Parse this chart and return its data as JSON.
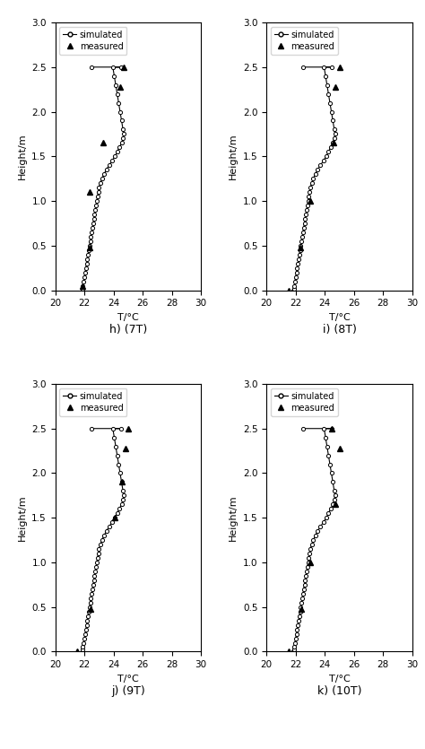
{
  "panel_labels": [
    "h) (7T)",
    "i) (8T)",
    "j) (9T)",
    "k) (10T)"
  ],
  "xlim": [
    20,
    30
  ],
  "xticks": [
    20,
    22,
    24,
    26,
    28,
    30
  ],
  "ylim": [
    0,
    3
  ],
  "yticks": [
    0,
    0.5,
    1.0,
    1.5,
    2.0,
    2.5,
    3.0
  ],
  "xlabel": "T/°C",
  "ylabel": "Height/m",
  "panels": [
    {
      "sim_H": [
        0.0,
        0.02,
        0.05,
        0.1,
        0.15,
        0.2,
        0.25,
        0.3,
        0.35,
        0.4,
        0.45,
        0.5,
        0.55,
        0.6,
        0.65,
        0.7,
        0.75,
        0.8,
        0.85,
        0.9,
        0.95,
        1.0,
        1.05,
        1.1,
        1.15,
        1.2,
        1.25,
        1.3,
        1.35,
        1.4,
        1.45,
        1.5,
        1.55,
        1.6,
        1.65,
        1.7,
        1.75,
        1.8,
        1.9,
        2.0,
        2.1,
        2.2,
        2.3,
        2.4,
        2.5,
        2.5,
        2.5
      ],
      "sim_T": [
        21.85,
        21.87,
        21.9,
        21.95,
        22.0,
        22.05,
        22.1,
        22.15,
        22.2,
        22.25,
        22.3,
        22.35,
        22.4,
        22.45,
        22.5,
        22.55,
        22.6,
        22.65,
        22.7,
        22.75,
        22.8,
        22.85,
        22.9,
        22.95,
        23.0,
        23.1,
        23.2,
        23.35,
        23.5,
        23.7,
        23.9,
        24.1,
        24.25,
        24.4,
        24.55,
        24.65,
        24.7,
        24.65,
        24.55,
        24.45,
        24.35,
        24.25,
        24.15,
        24.05,
        23.95,
        24.5,
        22.5
      ],
      "meas_T": [
        21.85,
        22.35,
        22.35,
        23.3,
        24.45,
        24.7
      ],
      "meas_H": [
        0.05,
        0.48,
        1.1,
        1.65,
        2.28,
        2.5
      ]
    },
    {
      "sim_H": [
        0.0,
        0.02,
        0.05,
        0.1,
        0.15,
        0.2,
        0.25,
        0.3,
        0.35,
        0.4,
        0.45,
        0.5,
        0.55,
        0.6,
        0.65,
        0.7,
        0.75,
        0.8,
        0.85,
        0.9,
        0.95,
        1.0,
        1.05,
        1.1,
        1.15,
        1.2,
        1.25,
        1.3,
        1.35,
        1.4,
        1.45,
        1.5,
        1.55,
        1.6,
        1.65,
        1.7,
        1.75,
        1.8,
        1.9,
        2.0,
        2.1,
        2.2,
        2.3,
        2.4,
        2.5,
        2.5,
        2.5
      ],
      "sim_T": [
        21.85,
        21.87,
        21.9,
        21.95,
        22.0,
        22.05,
        22.1,
        22.15,
        22.2,
        22.25,
        22.3,
        22.35,
        22.4,
        22.45,
        22.5,
        22.55,
        22.6,
        22.65,
        22.7,
        22.75,
        22.8,
        22.85,
        22.9,
        22.95,
        23.0,
        23.1,
        23.2,
        23.35,
        23.5,
        23.7,
        23.9,
        24.1,
        24.25,
        24.4,
        24.55,
        24.65,
        24.7,
        24.65,
        24.55,
        24.45,
        24.35,
        24.25,
        24.15,
        24.05,
        23.95,
        24.5,
        22.5
      ],
      "meas_T": [
        21.5,
        22.35,
        23.0,
        24.6,
        24.75,
        25.0
      ],
      "meas_H": [
        0.0,
        0.48,
        1.0,
        1.65,
        2.28,
        2.5
      ]
    },
    {
      "sim_H": [
        0.0,
        0.02,
        0.05,
        0.1,
        0.15,
        0.2,
        0.25,
        0.3,
        0.35,
        0.4,
        0.45,
        0.5,
        0.55,
        0.6,
        0.65,
        0.7,
        0.75,
        0.8,
        0.85,
        0.9,
        0.95,
        1.0,
        1.05,
        1.1,
        1.15,
        1.2,
        1.25,
        1.3,
        1.35,
        1.4,
        1.45,
        1.5,
        1.55,
        1.6,
        1.65,
        1.7,
        1.75,
        1.8,
        1.9,
        2.0,
        2.1,
        2.2,
        2.3,
        2.4,
        2.5,
        2.5,
        2.5
      ],
      "sim_T": [
        21.85,
        21.87,
        21.9,
        21.95,
        22.0,
        22.05,
        22.1,
        22.15,
        22.2,
        22.25,
        22.3,
        22.35,
        22.4,
        22.45,
        22.5,
        22.55,
        22.6,
        22.65,
        22.7,
        22.75,
        22.8,
        22.85,
        22.9,
        22.95,
        23.0,
        23.1,
        23.2,
        23.35,
        23.5,
        23.7,
        23.9,
        24.1,
        24.25,
        24.4,
        24.55,
        24.65,
        24.7,
        24.65,
        24.55,
        24.45,
        24.35,
        24.25,
        24.15,
        24.05,
        23.95,
        24.5,
        22.5
      ],
      "meas_T": [
        21.5,
        22.4,
        24.1,
        24.55,
        24.8,
        25.0
      ],
      "meas_H": [
        0.0,
        0.48,
        1.5,
        1.9,
        2.28,
        2.5
      ]
    },
    {
      "sim_H": [
        0.0,
        0.02,
        0.05,
        0.1,
        0.15,
        0.2,
        0.25,
        0.3,
        0.35,
        0.4,
        0.45,
        0.5,
        0.55,
        0.6,
        0.65,
        0.7,
        0.75,
        0.8,
        0.85,
        0.9,
        0.95,
        1.0,
        1.05,
        1.1,
        1.15,
        1.2,
        1.25,
        1.3,
        1.35,
        1.4,
        1.45,
        1.5,
        1.55,
        1.6,
        1.65,
        1.7,
        1.75,
        1.8,
        1.9,
        2.0,
        2.1,
        2.2,
        2.3,
        2.4,
        2.5,
        2.5,
        2.5
      ],
      "sim_T": [
        21.85,
        21.87,
        21.9,
        21.95,
        22.0,
        22.05,
        22.1,
        22.15,
        22.2,
        22.25,
        22.3,
        22.35,
        22.4,
        22.45,
        22.5,
        22.55,
        22.6,
        22.65,
        22.7,
        22.75,
        22.8,
        22.85,
        22.9,
        22.95,
        23.0,
        23.1,
        23.2,
        23.35,
        23.5,
        23.7,
        23.9,
        24.1,
        24.25,
        24.4,
        24.55,
        24.65,
        24.7,
        24.65,
        24.55,
        24.45,
        24.35,
        24.25,
        24.15,
        24.05,
        23.95,
        24.5,
        22.5
      ],
      "meas_T": [
        21.5,
        22.4,
        23.0,
        24.7,
        25.0,
        24.5
      ],
      "meas_H": [
        0.0,
        0.48,
        1.0,
        1.65,
        2.28,
        2.5
      ]
    }
  ]
}
